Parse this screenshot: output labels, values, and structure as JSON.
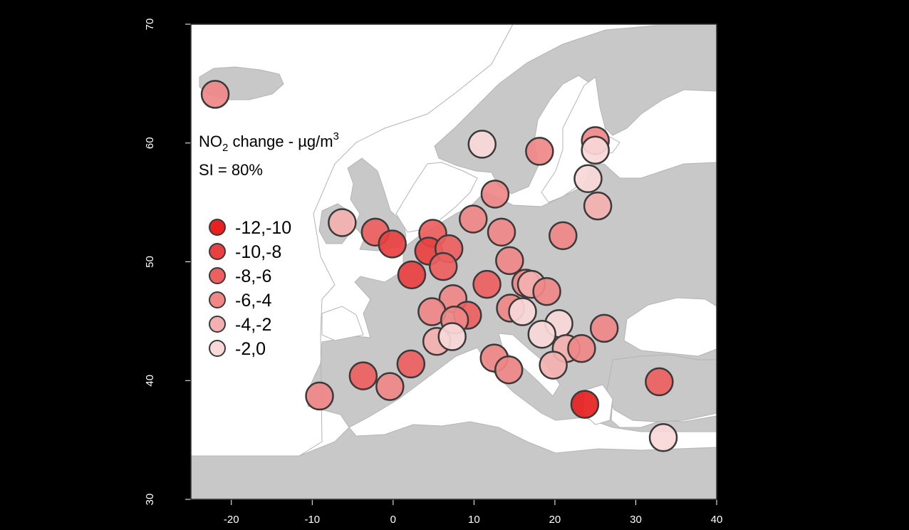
{
  "title": {
    "prefix": "NO",
    "subscript": "2",
    "suffix": " change - ",
    "unit_mu": "µg/m",
    "unit_sup": "3"
  },
  "subtitle": "SI = 80%",
  "legend": [
    {
      "label": "-12,-10",
      "color": "#e8201f"
    },
    {
      "label": "-10,-8",
      "color": "#e94040"
    },
    {
      "label": "-8,-6",
      "color": "#ed6060"
    },
    {
      "label": "-6,-4",
      "color": "#f08787"
    },
    {
      "label": "-4,-2",
      "color": "#f4b0b0"
    },
    {
      "label": "-2,0",
      "color": "#f9d8d8"
    }
  ],
  "chart_data": {
    "type": "scatter",
    "xlim": [
      -25,
      40
    ],
    "ylim": [
      30,
      70
    ],
    "x_ticks": [
      -20,
      -10,
      0,
      10,
      20,
      30,
      40
    ],
    "y_ticks": [
      30,
      40,
      50,
      60,
      70
    ],
    "title": "NO2 change - µg/m3",
    "subtitle": "SI = 80%",
    "points": [
      {
        "lon": -22,
        "lat": 64.1,
        "cls": 3
      },
      {
        "lon": 11,
        "lat": 59.9,
        "cls": 5
      },
      {
        "lon": 18.1,
        "lat": 59.3,
        "cls": 3
      },
      {
        "lon": 25,
        "lat": 60.2,
        "cls": 3
      },
      {
        "lon": 25,
        "lat": 59.4,
        "cls": 5
      },
      {
        "lon": 24.1,
        "lat": 57.0,
        "cls": 5
      },
      {
        "lon": 25.3,
        "lat": 54.7,
        "cls": 4
      },
      {
        "lon": 12.6,
        "lat": 55.7,
        "cls": 3
      },
      {
        "lon": 9.9,
        "lat": 53.6,
        "cls": 3
      },
      {
        "lon": 13.4,
        "lat": 52.5,
        "cls": 3
      },
      {
        "lon": 21.0,
        "lat": 52.2,
        "cls": 3
      },
      {
        "lon": -6.3,
        "lat": 53.3,
        "cls": 4
      },
      {
        "lon": -2.2,
        "lat": 52.5,
        "cls": 2
      },
      {
        "lon": -0.1,
        "lat": 51.5,
        "cls": 1
      },
      {
        "lon": 4.9,
        "lat": 52.4,
        "cls": 2
      },
      {
        "lon": 4.4,
        "lat": 50.9,
        "cls": 1
      },
      {
        "lon": 6.9,
        "lat": 51.1,
        "cls": 2
      },
      {
        "lon": 6.2,
        "lat": 49.6,
        "cls": 2
      },
      {
        "lon": 2.3,
        "lat": 48.9,
        "cls": 1
      },
      {
        "lon": 11.6,
        "lat": 48.1,
        "cls": 2
      },
      {
        "lon": 14.4,
        "lat": 50.1,
        "cls": 3
      },
      {
        "lon": 16.4,
        "lat": 48.2,
        "cls": 3
      },
      {
        "lon": 17.1,
        "lat": 48.1,
        "cls": 4
      },
      {
        "lon": 19.0,
        "lat": 47.5,
        "cls": 3
      },
      {
        "lon": 7.4,
        "lat": 46.9,
        "cls": 3
      },
      {
        "lon": 4.8,
        "lat": 45.8,
        "cls": 3
      },
      {
        "lon": 9.2,
        "lat": 45.5,
        "cls": 2
      },
      {
        "lon": 7.6,
        "lat": 45.1,
        "cls": 3
      },
      {
        "lon": 14.5,
        "lat": 46.1,
        "cls": 3
      },
      {
        "lon": 16.0,
        "lat": 45.8,
        "cls": 5
      },
      {
        "lon": 20.5,
        "lat": 44.8,
        "cls": 5
      },
      {
        "lon": 26.1,
        "lat": 44.4,
        "cls": 3
      },
      {
        "lon": 5.4,
        "lat": 43.3,
        "cls": 4
      },
      {
        "lon": 7.3,
        "lat": 43.7,
        "cls": 5
      },
      {
        "lon": 18.4,
        "lat": 43.9,
        "cls": 5
      },
      {
        "lon": 21.4,
        "lat": 42.7,
        "cls": 4
      },
      {
        "lon": 23.3,
        "lat": 42.7,
        "cls": 3
      },
      {
        "lon": 12.5,
        "lat": 41.9,
        "cls": 3
      },
      {
        "lon": 14.3,
        "lat": 40.9,
        "cls": 3
      },
      {
        "lon": 19.8,
        "lat": 41.3,
        "cls": 4
      },
      {
        "lon": 2.2,
        "lat": 41.4,
        "cls": 2
      },
      {
        "lon": -3.7,
        "lat": 40.4,
        "cls": 2
      },
      {
        "lon": -0.4,
        "lat": 39.5,
        "cls": 3
      },
      {
        "lon": -9.1,
        "lat": 38.7,
        "cls": 3
      },
      {
        "lon": 23.7,
        "lat": 38.0,
        "cls": 0
      },
      {
        "lon": 32.9,
        "lat": 39.9,
        "cls": 2
      },
      {
        "lon": 33.4,
        "lat": 35.2,
        "cls": 5
      }
    ]
  }
}
